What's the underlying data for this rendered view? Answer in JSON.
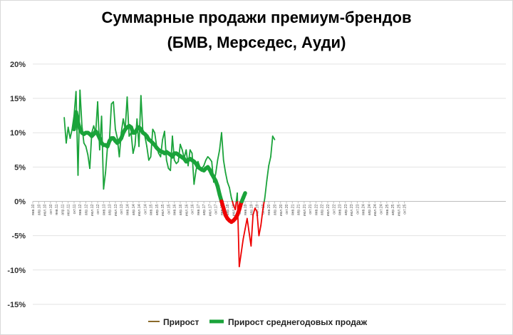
{
  "chart_data": {
    "type": "line",
    "title_line1": "Суммарные продажи премиум-брендов",
    "title_line2": "(БМВ, Мерседес, Ауди)",
    "ylim": [
      -0.15,
      0.2
    ],
    "yticks": [
      "20%",
      "15%",
      "10%",
      "5%",
      "0%",
      "-5%",
      "-10%",
      "-15%"
    ],
    "ytick_values": [
      0.2,
      0.15,
      0.1,
      0.05,
      0.0,
      -0.05,
      -0.1,
      -0.15
    ],
    "xticks": [
      "янв.10",
      "апр.10",
      "июл.10",
      "окт.10",
      "янв.11",
      "апр.11",
      "июл.11",
      "окт.11",
      "янв.12",
      "апр.12",
      "июл.12",
      "окт.12",
      "янв.13",
      "апр.13",
      "июл.13",
      "окт.13",
      "янв.14",
      "апр.14",
      "июл.14",
      "окт.14",
      "янв.15",
      "апр.15",
      "июл.15",
      "окт.15",
      "янв.16",
      "апр.16",
      "июл.16",
      "окт.16",
      "янв.17",
      "апр.17",
      "июл.17",
      "окт.17",
      "янв.18",
      "апр.18",
      "июл.18",
      "окт.18",
      "янв.19",
      "апр.19",
      "июл.19",
      "окт.19",
      "янв.20",
      "апр.20",
      "июл.20",
      "окт.20",
      "янв.21",
      "апр.21",
      "июл.21",
      "окт.21",
      "янв.22",
      "апр.22",
      "июл.22",
      "окт.22",
      "янв.23",
      "апр.23",
      "июл.23",
      "окт.23",
      "янв.24",
      "апр.24",
      "июл.24",
      "окт.24",
      "янв.25",
      "апр.25",
      "июл.25",
      "окт.25"
    ],
    "x_start": "янв.10",
    "positive_color": "#1aa33a",
    "negative_color": "#ee0000",
    "legend_position": "bottom",
    "grid": "horizontal",
    "series": [
      {
        "name": "Прирост",
        "legend_color": "#8a6a2a",
        "start": "май.11",
        "values": [
          0.122,
          0.085,
          0.108,
          0.092,
          0.105,
          0.125,
          0.16,
          0.038,
          0.162,
          0.11,
          0.085,
          0.08,
          0.068,
          0.048,
          0.1,
          0.11,
          0.1,
          0.145,
          0.075,
          0.124,
          0.018,
          0.042,
          0.08,
          0.09,
          0.142,
          0.145,
          0.105,
          0.092,
          0.065,
          0.1,
          0.12,
          0.105,
          0.152,
          0.095,
          0.1,
          0.07,
          0.082,
          0.12,
          0.08,
          0.154,
          0.1,
          0.095,
          0.08,
          0.06,
          0.065,
          0.105,
          0.1,
          0.08,
          0.07,
          0.065,
          0.09,
          0.102,
          0.06,
          0.048,
          0.045,
          0.095,
          0.06,
          0.055,
          0.058,
          0.083,
          0.075,
          0.063,
          0.075,
          0.052,
          0.075,
          0.07,
          0.025,
          0.045,
          0.058,
          0.05,
          0.048,
          0.052,
          0.06,
          0.065,
          0.062,
          0.058,
          0.028,
          0.04,
          0.06,
          0.075,
          0.1,
          0.06,
          0.042,
          0.028,
          0.02,
          0.005,
          -0.005,
          -0.012,
          0.012,
          -0.095,
          -0.075,
          -0.055,
          -0.04,
          -0.025,
          -0.045,
          -0.065,
          -0.02,
          -0.01,
          -0.015,
          -0.05,
          -0.035,
          -0.012,
          0.005,
          0.03,
          0.052,
          0.065,
          0.095,
          0.09
        ]
      },
      {
        "name": "Прирост среднегодовых продаж",
        "legend_color": "#1aa33a",
        "start": "окт.11",
        "values": [
          0.105,
          0.13,
          0.115,
          0.105,
          0.1,
          0.098,
          0.1,
          0.1,
          0.098,
          0.095,
          0.098,
          0.102,
          0.098,
          0.092,
          0.085,
          0.082,
          0.082,
          0.08,
          0.088,
          0.092,
          0.092,
          0.088,
          0.085,
          0.088,
          0.092,
          0.1,
          0.105,
          0.108,
          0.11,
          0.108,
          0.1,
          0.1,
          0.105,
          0.108,
          0.105,
          0.1,
          0.098,
          0.095,
          0.09,
          0.088,
          0.085,
          0.082,
          0.078,
          0.075,
          0.073,
          0.072,
          0.07,
          0.072,
          0.07,
          0.068,
          0.065,
          0.07,
          0.07,
          0.068,
          0.066,
          0.064,
          0.062,
          0.058,
          0.06,
          0.062,
          0.06,
          0.058,
          0.055,
          0.05,
          0.048,
          0.046,
          0.045,
          0.048,
          0.05,
          0.046,
          0.04,
          0.035,
          0.03,
          0.022,
          0.01,
          0.0,
          -0.01,
          -0.02,
          -0.025,
          -0.028,
          -0.03,
          -0.028,
          -0.025,
          -0.02,
          -0.012,
          -0.002,
          0.005,
          0.012
        ]
      }
    ]
  }
}
